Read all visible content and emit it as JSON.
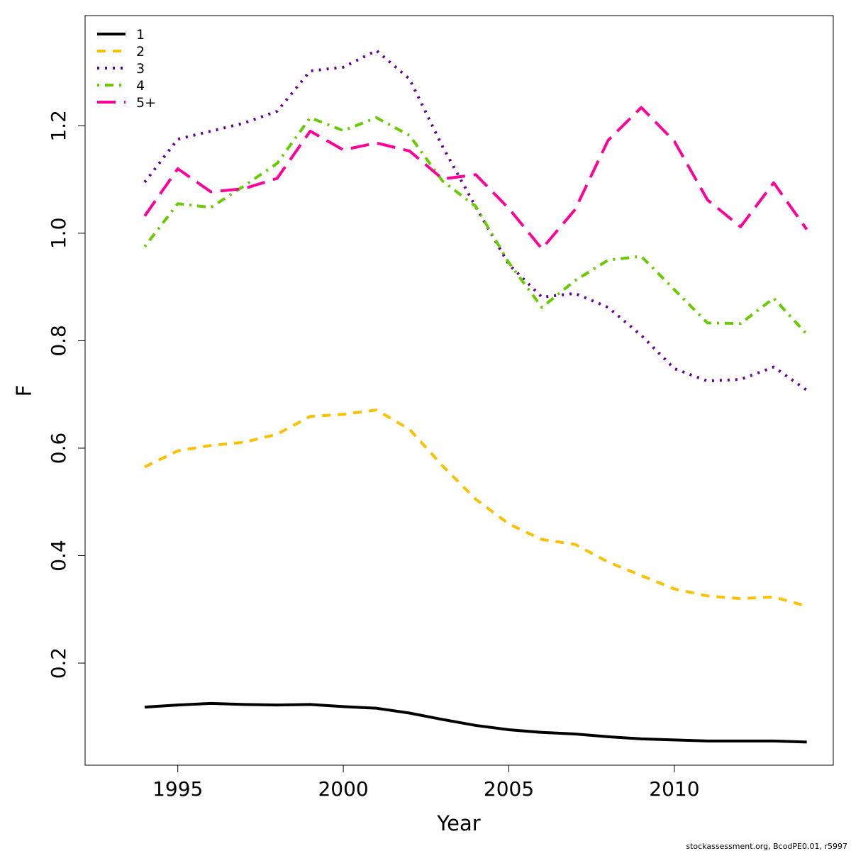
{
  "chart_data": {
    "type": "line",
    "xlabel": "Year",
    "ylabel": "F",
    "xlim": [
      1992.2,
      2014.8
    ],
    "ylim": [
      0.01,
      1.405
    ],
    "xticks": [
      1995,
      2000,
      2005,
      2010
    ],
    "xtick_labels": [
      "1995",
      "2000",
      "2005",
      "2010"
    ],
    "yticks": [
      0.2,
      0.4,
      0.6,
      0.8,
      1.0,
      1.2
    ],
    "ytick_labels": [
      "0.2",
      "0.4",
      "0.6",
      "0.8",
      "1.0",
      "1.2"
    ],
    "grid": false,
    "legend_position": "top-left",
    "x": [
      1994,
      1995,
      1996,
      1997,
      1998,
      1999,
      2000,
      2001,
      2002,
      2003,
      2004,
      2005,
      2006,
      2007,
      2008,
      2009,
      2010,
      2011,
      2012,
      2013,
      2014
    ],
    "series": [
      {
        "name": "1",
        "color": "#000000",
        "line_style": "solid",
        "values": [
          0.118,
          0.122,
          0.125,
          0.123,
          0.122,
          0.123,
          0.119,
          0.116,
          0.107,
          0.095,
          0.084,
          0.076,
          0.071,
          0.068,
          0.063,
          0.059,
          0.057,
          0.055,
          0.055,
          0.055,
          0.053
        ]
      },
      {
        "name": "2",
        "color": "#FFC000",
        "line_style": "dashed",
        "values": [
          0.565,
          0.595,
          0.605,
          0.611,
          0.626,
          0.659,
          0.663,
          0.671,
          0.635,
          0.567,
          0.505,
          0.459,
          0.43,
          0.421,
          0.388,
          0.363,
          0.338,
          0.325,
          0.32,
          0.323,
          0.306
        ]
      },
      {
        "name": "3",
        "color": "#660099",
        "line_style": "dotted",
        "values": [
          1.095,
          1.175,
          1.19,
          1.205,
          1.227,
          1.302,
          1.309,
          1.34,
          1.287,
          1.161,
          1.049,
          0.942,
          0.881,
          0.888,
          0.862,
          0.81,
          0.748,
          0.725,
          0.728,
          0.751,
          0.708
        ]
      },
      {
        "name": "4",
        "color": "#66CC00",
        "line_style": "dotdash",
        "values": [
          0.975,
          1.055,
          1.048,
          1.088,
          1.13,
          1.215,
          1.191,
          1.215,
          1.182,
          1.097,
          1.05,
          0.945,
          0.862,
          0.912,
          0.95,
          0.957,
          0.895,
          0.833,
          0.832,
          0.879,
          0.812
        ]
      },
      {
        "name": "5+",
        "color": "#FF0099",
        "line_style": "longdash",
        "values": [
          1.032,
          1.12,
          1.077,
          1.083,
          1.102,
          1.19,
          1.155,
          1.168,
          1.153,
          1.101,
          1.109,
          1.046,
          0.971,
          1.044,
          1.173,
          1.234,
          1.171,
          1.062,
          1.012,
          1.094,
          1.007
        ]
      }
    ]
  },
  "footer": {
    "text": "stockassessment.org, BcodPE0.01, r5997"
  }
}
